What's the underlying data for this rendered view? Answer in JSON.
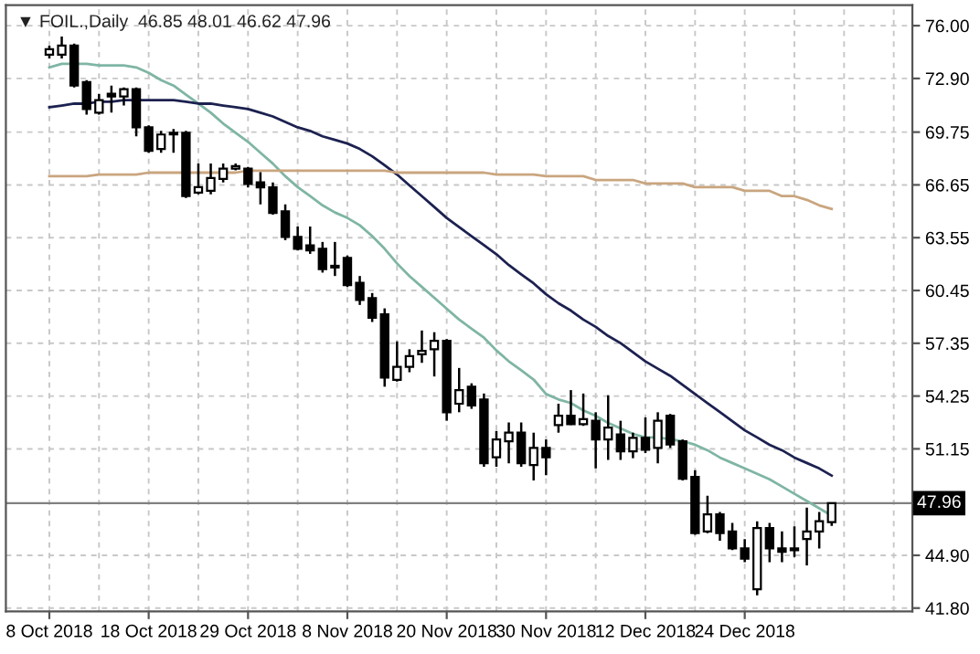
{
  "chart_data": {
    "type": "candlestick",
    "title": "▼ FOIL.,Daily  46.85 48.01 46.62 47.96",
    "categories": [
      "8 Oct 2018",
      null,
      null,
      null,
      null,
      null,
      null,
      null,
      "18 Oct 2018",
      null,
      null,
      null,
      null,
      null,
      null,
      null,
      "29 Oct 2018",
      null,
      null,
      null,
      null,
      null,
      null,
      null,
      "8 Nov 2018",
      null,
      null,
      null,
      null,
      null,
      null,
      null,
      "20 Nov 2018",
      null,
      null,
      null,
      null,
      null,
      null,
      null,
      "30 Nov 2018",
      null,
      null,
      null,
      null,
      null,
      null,
      null,
      "12 Dec 2018",
      null,
      null,
      null,
      null,
      null,
      null,
      null,
      "24 Dec 2018",
      null,
      null,
      null,
      null,
      null,
      null,
      null
    ],
    "ohlc": [
      [
        74.3,
        74.83,
        74.08,
        74.62
      ],
      [
        74.3,
        75.36,
        74.08,
        74.83
      ],
      [
        74.83,
        74.94,
        72.37,
        72.48
      ],
      [
        72.69,
        72.8,
        70.78,
        71.1
      ],
      [
        70.89,
        72.0,
        70.78,
        71.63
      ],
      [
        72.0,
        72.48,
        70.89,
        71.84
      ],
      [
        71.84,
        72.37,
        71.31,
        72.27
      ],
      [
        72.27,
        72.37,
        69.5,
        70.03
      ],
      [
        70.03,
        70.14,
        68.54,
        68.65
      ],
      [
        68.76,
        69.82,
        68.54,
        69.61
      ],
      [
        69.61,
        69.93,
        68.54,
        69.71
      ],
      [
        69.71,
        69.82,
        65.88,
        65.99
      ],
      [
        66.2,
        67.9,
        66.09,
        66.52
      ],
      [
        66.3,
        67.9,
        66.09,
        67.05
      ],
      [
        67.0,
        67.9,
        66.8,
        67.6
      ],
      [
        67.6,
        67.9,
        67.5,
        67.75
      ],
      [
        67.6,
        67.7,
        66.5,
        66.7
      ],
      [
        66.8,
        67.4,
        65.5,
        66.5
      ],
      [
        66.5,
        66.8,
        64.9,
        65.0
      ],
      [
        65.1,
        65.5,
        63.4,
        63.6
      ],
      [
        63.6,
        64.2,
        62.8,
        62.9
      ],
      [
        63.1,
        64.2,
        62.6,
        62.8
      ],
      [
        62.9,
        63.3,
        61.5,
        61.7
      ],
      [
        61.9,
        63.3,
        61.3,
        61.8
      ],
      [
        62.36,
        62.5,
        60.66,
        60.77
      ],
      [
        60.9,
        61.3,
        59.6,
        59.9
      ],
      [
        60.0,
        60.3,
        58.6,
        58.85
      ],
      [
        59.05,
        59.4,
        54.8,
        55.33
      ],
      [
        55.2,
        57.46,
        55.1,
        55.97
      ],
      [
        55.97,
        57.0,
        55.65,
        56.6
      ],
      [
        56.7,
        58.1,
        56.2,
        56.9
      ],
      [
        57.0,
        58.0,
        55.4,
        57.5
      ],
      [
        57.5,
        57.6,
        52.8,
        53.3
      ],
      [
        53.8,
        55.9,
        53.3,
        54.6
      ],
      [
        54.8,
        55.0,
        53.5,
        53.7
      ],
      [
        54.05,
        54.4,
        50.1,
        50.3
      ],
      [
        50.65,
        52.2,
        50.1,
        51.7
      ],
      [
        51.6,
        52.7,
        50.3,
        52.1
      ],
      [
        52.1,
        52.7,
        50.1,
        50.3
      ],
      [
        50.2,
        52.1,
        49.3,
        51.2
      ],
      [
        51.2,
        51.7,
        49.6,
        50.65
      ],
      [
        52.55,
        53.8,
        52.1,
        53.1
      ],
      [
        53.1,
        54.6,
        52.55,
        52.6
      ],
      [
        52.6,
        54.4,
        52.5,
        52.9
      ],
      [
        52.8,
        53.3,
        50.0,
        51.7
      ],
      [
        51.7,
        54.3,
        50.5,
        52.4
      ],
      [
        52.0,
        52.8,
        50.5,
        51.0
      ],
      [
        51.0,
        52.1,
        50.6,
        51.8
      ],
      [
        51.8,
        53.0,
        50.9,
        51.1
      ],
      [
        51.2,
        53.3,
        50.3,
        52.8
      ],
      [
        53.1,
        53.2,
        51.2,
        51.4
      ],
      [
        51.6,
        51.7,
        49.3,
        49.4
      ],
      [
        49.5,
        49.9,
        46.1,
        46.2
      ],
      [
        46.3,
        48.4,
        46.2,
        47.3
      ],
      [
        47.3,
        47.45,
        45.75,
        46.2
      ],
      [
        46.3,
        46.8,
        45.2,
        45.3
      ],
      [
        45.3,
        45.85,
        44.5,
        44.7
      ],
      [
        42.9,
        46.9,
        42.55,
        46.5
      ],
      [
        46.5,
        46.8,
        44.5,
        45.3
      ],
      [
        45.3,
        46.3,
        44.5,
        45.1
      ],
      [
        45.2,
        46.6,
        44.8,
        45.3
      ],
      [
        45.85,
        47.7,
        44.3,
        46.3
      ],
      [
        46.3,
        47.45,
        45.3,
        46.9
      ],
      [
        46.85,
        48.01,
        46.62,
        47.96
      ]
    ],
    "series": [
      {
        "type": "line",
        "color": "#7fb5a5",
        "values": [
          73.55,
          73.76,
          73.76,
          73.76,
          73.66,
          73.66,
          73.66,
          73.55,
          73.23,
          72.8,
          72.48,
          71.95,
          71.42,
          70.89,
          70.25,
          69.71,
          69.18,
          68.54,
          67.9,
          67.16,
          66.52,
          65.99,
          65.45,
          65.03,
          64.71,
          64.28,
          63.64,
          62.9,
          62.04,
          61.3,
          60.66,
          60.02,
          59.38,
          58.74,
          58.21,
          57.68,
          56.93,
          56.29,
          55.76,
          55.22,
          54.37,
          54.05,
          53.84,
          53.41,
          53.09,
          52.67,
          52.35,
          52.03,
          51.82,
          51.82,
          51.71,
          51.6,
          51.39,
          51.07,
          50.64,
          50.32,
          50.0,
          49.68,
          49.36,
          48.94,
          48.51,
          48.09,
          47.66,
          47.23
        ]
      },
      {
        "type": "line",
        "color": "#1c2150",
        "values": [
          71.21,
          71.31,
          71.42,
          71.42,
          71.53,
          71.53,
          71.63,
          71.63,
          71.63,
          71.63,
          71.63,
          71.53,
          71.42,
          71.42,
          71.31,
          71.21,
          71.1,
          70.89,
          70.67,
          70.35,
          70.03,
          69.82,
          69.5,
          69.29,
          69.08,
          68.76,
          68.33,
          67.8,
          67.26,
          66.62,
          65.99,
          65.35,
          64.71,
          64.17,
          63.64,
          63.11,
          62.58,
          61.94,
          61.4,
          60.87,
          60.23,
          59.7,
          59.27,
          58.74,
          58.31,
          57.78,
          57.36,
          56.82,
          56.29,
          55.86,
          55.44,
          54.91,
          54.37,
          53.84,
          53.31,
          52.77,
          52.24,
          51.82,
          51.39,
          51.07,
          50.64,
          50.32,
          50.0,
          49.58
        ]
      },
      {
        "type": "line",
        "color": "#c9a57f",
        "values": [
          67.16,
          67.16,
          67.16,
          67.16,
          67.26,
          67.26,
          67.26,
          67.26,
          67.37,
          67.37,
          67.37,
          67.37,
          67.37,
          67.37,
          67.37,
          67.37,
          67.48,
          67.48,
          67.48,
          67.48,
          67.48,
          67.48,
          67.48,
          67.48,
          67.48,
          67.48,
          67.48,
          67.48,
          67.37,
          67.37,
          67.37,
          67.37,
          67.37,
          67.37,
          67.37,
          67.37,
          67.26,
          67.26,
          67.26,
          67.26,
          67.16,
          67.16,
          67.16,
          67.16,
          66.94,
          66.94,
          66.94,
          66.94,
          66.73,
          66.73,
          66.73,
          66.73,
          66.52,
          66.52,
          66.52,
          66.52,
          66.3,
          66.3,
          66.3,
          65.99,
          65.99,
          65.77,
          65.45,
          65.24
        ]
      }
    ],
    "ylim": [
      41.6,
      77.2
    ],
    "yticks": [
      {
        "value": 76,
        "label": "76.00"
      },
      {
        "value": 72.9,
        "label": "72.90"
      },
      {
        "value": 69.75,
        "label": "69.75"
      },
      {
        "value": 66.65,
        "label": "66.65"
      },
      {
        "value": 63.55,
        "label": "63.55"
      },
      {
        "value": 60.45,
        "label": "60.45"
      },
      {
        "value": 57.35,
        "label": "57.35"
      },
      {
        "value": 54.25,
        "label": "54.25"
      },
      {
        "value": 51.15,
        "label": "51.15"
      },
      {
        "value": 44.9,
        "label": "44.90"
      },
      {
        "value": 41.8,
        "label": "41.80"
      }
    ],
    "ref_lines": [
      {
        "axis": "y",
        "value": 47.96,
        "label": "47.96",
        "color": "#808080"
      }
    ],
    "grid": true,
    "legend": false
  }
}
